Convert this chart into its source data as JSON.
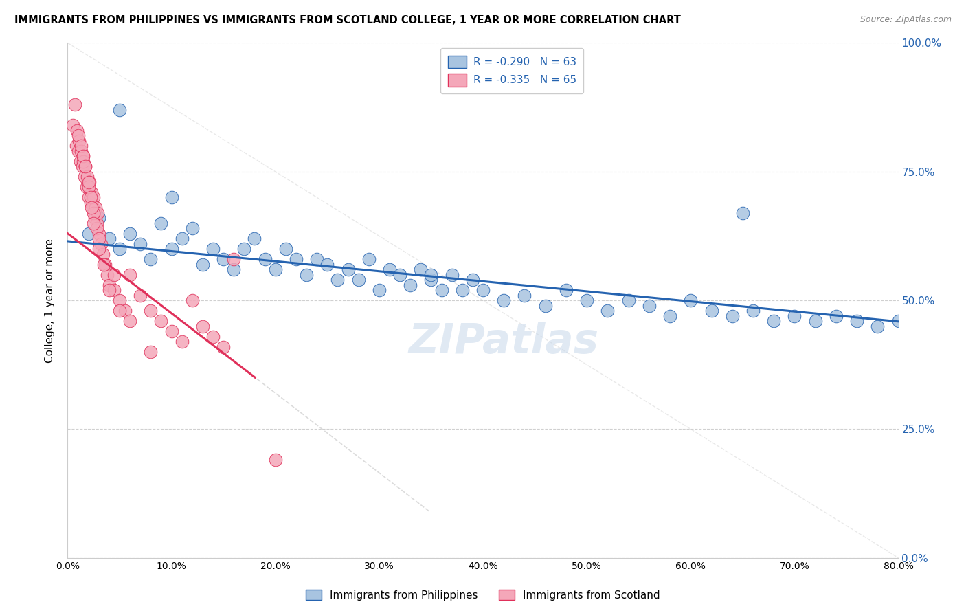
{
  "title": "IMMIGRANTS FROM PHILIPPINES VS IMMIGRANTS FROM SCOTLAND COLLEGE, 1 YEAR OR MORE CORRELATION CHART",
  "source": "Source: ZipAtlas.com",
  "ylabel": "College, 1 year or more",
  "legend_label1": "Immigrants from Philippines",
  "legend_label2": "Immigrants from Scotland",
  "legend_r1": "R = -0.290",
  "legend_n1": "N = 63",
  "legend_r2": "R = -0.335",
  "legend_n2": "N = 65",
  "ytick_values": [
    0,
    25,
    50,
    75,
    100
  ],
  "xtick_values": [
    0,
    10,
    20,
    30,
    40,
    50,
    60,
    70,
    80
  ],
  "color_blue": "#a8c4e0",
  "color_pink": "#f4a7b9",
  "color_line_blue": "#2563b0",
  "color_line_pink": "#e0305a",
  "color_watermark": "#c8d8ea",
  "blue_intercept": 61.5,
  "blue_slope": -0.195,
  "pink_intercept": 63.0,
  "pink_slope": -1.55,
  "blue_x": [
    2.0,
    3.0,
    4.0,
    5.0,
    6.0,
    7.0,
    8.0,
    9.0,
    10.0,
    11.0,
    12.0,
    13.0,
    14.0,
    15.0,
    16.0,
    17.0,
    18.0,
    19.0,
    20.0,
    21.0,
    22.0,
    23.0,
    24.0,
    25.0,
    26.0,
    27.0,
    28.0,
    29.0,
    30.0,
    31.0,
    32.0,
    33.0,
    34.0,
    35.0,
    36.0,
    37.0,
    38.0,
    39.0,
    40.0,
    42.0,
    44.0,
    46.0,
    48.0,
    50.0,
    52.0,
    54.0,
    56.0,
    58.0,
    60.0,
    62.0,
    64.0,
    66.0,
    68.0,
    70.0,
    72.0,
    74.0,
    76.0,
    78.0,
    80.0,
    5.0,
    10.0,
    35.0,
    65.0
  ],
  "blue_y": [
    63,
    66,
    62,
    60,
    63,
    61,
    58,
    65,
    60,
    62,
    64,
    57,
    60,
    58,
    56,
    60,
    62,
    58,
    56,
    60,
    58,
    55,
    58,
    57,
    54,
    56,
    54,
    58,
    52,
    56,
    55,
    53,
    56,
    54,
    52,
    55,
    52,
    54,
    52,
    50,
    51,
    49,
    52,
    50,
    48,
    50,
    49,
    47,
    50,
    48,
    47,
    48,
    46,
    47,
    46,
    47,
    46,
    45,
    46,
    87,
    70,
    55,
    67
  ],
  "pink_x": [
    0.5,
    0.7,
    0.8,
    0.9,
    1.0,
    1.1,
    1.2,
    1.3,
    1.4,
    1.5,
    1.6,
    1.7,
    1.8,
    1.9,
    2.0,
    2.1,
    2.2,
    2.3,
    2.4,
    2.5,
    2.6,
    2.7,
    2.8,
    2.9,
    3.0,
    3.2,
    3.4,
    3.6,
    3.8,
    4.0,
    4.5,
    5.0,
    5.5,
    6.0,
    7.0,
    8.0,
    9.0,
    10.0,
    11.0,
    12.0,
    13.0,
    14.0,
    15.0,
    16.0,
    1.5,
    2.0,
    2.2,
    2.5,
    2.8,
    3.0,
    3.5,
    4.0,
    5.0,
    6.0,
    1.0,
    1.3,
    1.5,
    1.7,
    2.0,
    2.3,
    2.5,
    3.0,
    4.5,
    8.0,
    20.0
  ],
  "pink_y": [
    84,
    88,
    80,
    83,
    79,
    81,
    77,
    79,
    76,
    78,
    74,
    76,
    72,
    74,
    70,
    73,
    69,
    71,
    68,
    70,
    66,
    68,
    65,
    67,
    63,
    61,
    59,
    57,
    55,
    53,
    52,
    50,
    48,
    55,
    51,
    48,
    46,
    44,
    42,
    50,
    45,
    43,
    41,
    58,
    77,
    72,
    70,
    67,
    64,
    62,
    57,
    52,
    48,
    46,
    82,
    80,
    78,
    76,
    73,
    68,
    65,
    60,
    55,
    40,
    19
  ]
}
